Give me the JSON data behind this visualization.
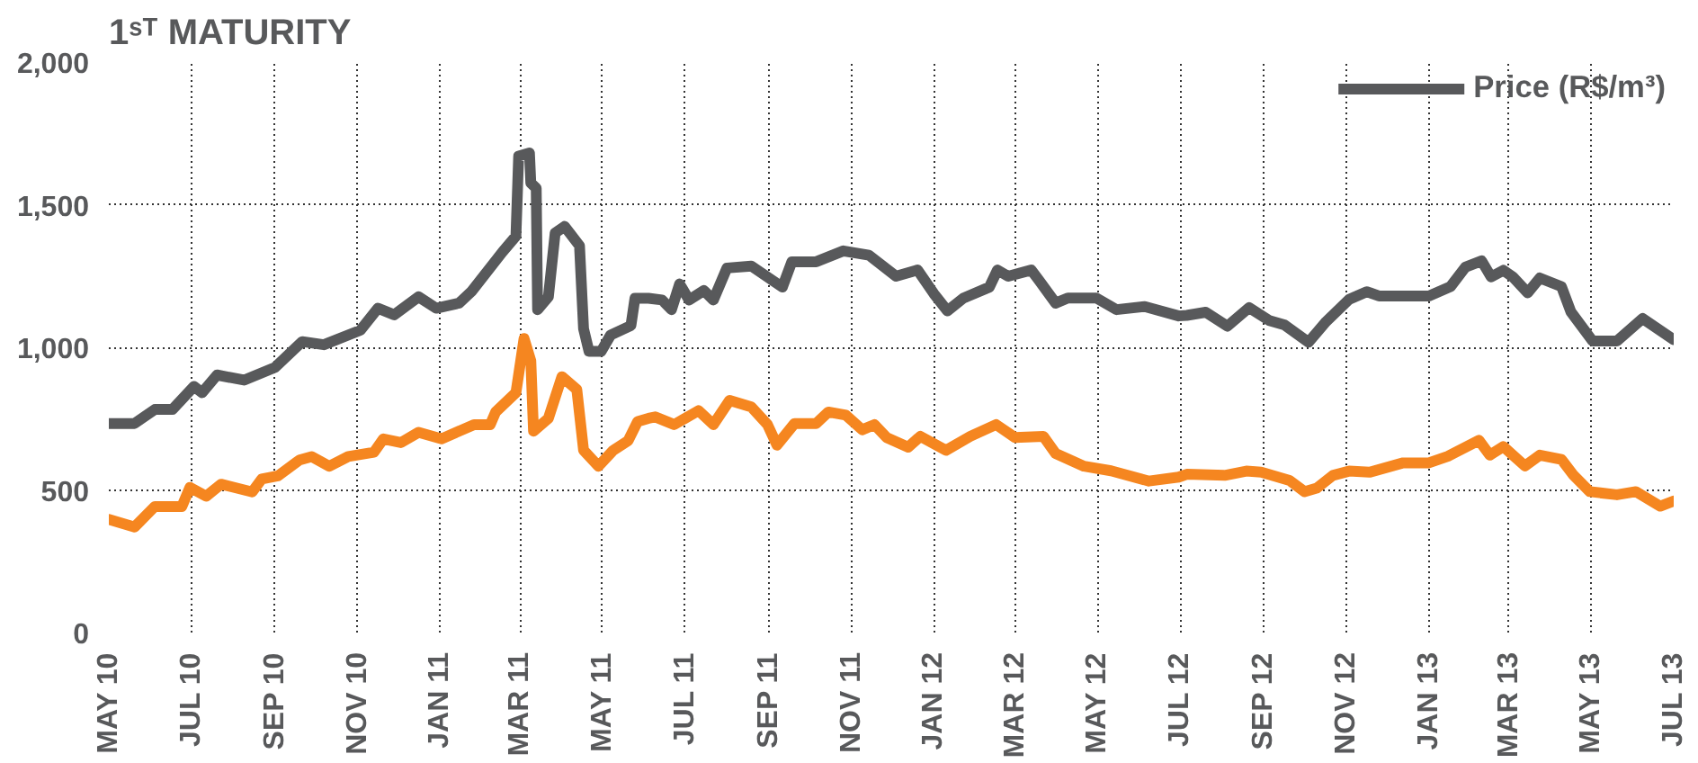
{
  "chart_data": {
    "type": "line",
    "title": "1ˢᵀ MATURITY",
    "xlim": [
      "2010-05-01",
      "2013-07-01"
    ],
    "xticks": [
      {
        "value": "2010-05-01",
        "label": "MAY 10"
      },
      {
        "value": "2010-07-01",
        "label": "JUL 10"
      },
      {
        "value": "2010-09-01",
        "label": "SEP 10"
      },
      {
        "value": "2010-11-01",
        "label": "NOV 10"
      },
      {
        "value": "2011-01-01",
        "label": "JAN 11"
      },
      {
        "value": "2011-03-01",
        "label": "MAR 11"
      },
      {
        "value": "2011-05-01",
        "label": "MAY 11"
      },
      {
        "value": "2011-07-01",
        "label": "JUL 11"
      },
      {
        "value": "2011-09-01",
        "label": "SEP 11"
      },
      {
        "value": "2011-11-01",
        "label": "NOV 11"
      },
      {
        "value": "2012-01-01",
        "label": "JAN 12"
      },
      {
        "value": "2012-03-01",
        "label": "MAR 12"
      },
      {
        "value": "2012-05-01",
        "label": "MAY 12"
      },
      {
        "value": "2012-07-01",
        "label": "JUL 12"
      },
      {
        "value": "2012-09-01",
        "label": "SEP 12"
      },
      {
        "value": "2012-11-01",
        "label": "NOV 12"
      },
      {
        "value": "2013-01-01",
        "label": "JAN 13"
      },
      {
        "value": "2013-03-01",
        "label": "MAR 13"
      },
      {
        "value": "2013-05-01",
        "label": "MAY 13"
      },
      {
        "value": "2013-07-01",
        "label": "JUL 13"
      }
    ],
    "ylim": [
      0,
      2000
    ],
    "yticks": [
      0,
      {
        "value": 500,
        "label": "500"
      },
      {
        "value": 1000,
        "label": "1,000"
      },
      {
        "value": 1500,
        "label": "1,500"
      },
      {
        "value": 2000,
        "label": "2,000"
      }
    ],
    "grid": true,
    "legend": "top right",
    "line_style": "solid",
    "marker": "none",
    "series": [
      {
        "name": "Price (R$/m³)",
        "color": "#58595b",
        "x": [
          "2010-05-01",
          "2010-05-20",
          "2010-06-04",
          "2010-06-17",
          "2010-07-03",
          "2010-07-09",
          "2010-07-20",
          "2010-08-09",
          "2010-09-01",
          "2010-09-21",
          "2010-10-07",
          "2010-11-03",
          "2010-11-16",
          "2010-11-28",
          "2010-12-16",
          "2010-12-29",
          "2011-01-15",
          "2011-01-24",
          "2011-02-16",
          "2011-02-26",
          "2011-02-28",
          "2011-03-08",
          "2011-03-09",
          "2011-03-13",
          "2011-03-14",
          "2011-03-22",
          "2011-03-27",
          "2011-04-03",
          "2011-04-14",
          "2011-04-17",
          "2011-04-21",
          "2011-04-30",
          "2011-05-07",
          "2011-05-22",
          "2011-05-25",
          "2011-06-04",
          "2011-06-14",
          "2011-06-21",
          "2011-06-27",
          "2011-07-04",
          "2011-07-15",
          "2011-07-22",
          "2011-08-01",
          "2011-08-19",
          "2011-09-11",
          "2011-09-18",
          "2011-10-06",
          "2011-10-26",
          "2011-11-14",
          "2011-12-04",
          "2011-12-20",
          "2012-01-01",
          "2012-01-11",
          "2012-01-23",
          "2012-02-11",
          "2012-02-17",
          "2012-02-25",
          "2012-03-13",
          "2012-03-19",
          "2012-03-31",
          "2012-04-09",
          "2012-04-30",
          "2012-05-15",
          "2012-06-05",
          "2012-06-30",
          "2012-07-06",
          "2012-07-20",
          "2012-08-05",
          "2012-08-21",
          "2012-09-05",
          "2012-09-16",
          "2012-10-04",
          "2012-10-17",
          "2012-11-03",
          "2012-11-16",
          "2012-11-25",
          "2013-01-01",
          "2013-01-17",
          "2013-01-28",
          "2013-02-09",
          "2013-02-16",
          "2013-02-25",
          "2013-03-04",
          "2013-03-15",
          "2013-03-24",
          "2013-04-09",
          "2013-04-16",
          "2013-05-02",
          "2013-05-20",
          "2013-06-08",
          "2013-07-01"
        ],
        "values": [
          733,
          733,
          782,
          782,
          863,
          841,
          903,
          885,
          930,
          1020,
          1009,
          1060,
          1137,
          1114,
          1177,
          1137,
          1155,
          1195,
          1334,
          1390,
          1670,
          1681,
          1576,
          1558,
          1132,
          1177,
          1401,
          1424,
          1356,
          1065,
          986,
          986,
          1043,
          1076,
          1172,
          1172,
          1166,
          1132,
          1222,
          1166,
          1199,
          1166,
          1278,
          1285,
          1211,
          1300,
          1300,
          1338,
          1323,
          1249,
          1271,
          1188,
          1128,
          1173,
          1211,
          1271,
          1249,
          1271,
          1233,
          1155,
          1173,
          1173,
          1132,
          1143,
          1110,
          1112,
          1123,
          1074,
          1139,
          1094,
          1079,
          1018,
          1090,
          1168,
          1195,
          1180,
          1180,
          1213,
          1281,
          1303,
          1247,
          1270,
          1247,
          1191,
          1243,
          1213,
          1124,
          1022,
          1022,
          1101,
          1027
        ]
      },
      {
        "color": "#f58620",
        "x": [
          "2010-05-01",
          "2010-05-20",
          "2010-06-04",
          "2010-06-24",
          "2010-06-30",
          "2010-07-12",
          "2010-07-23",
          "2010-08-15",
          "2010-08-22",
          "2010-09-03",
          "2010-09-19",
          "2010-09-28",
          "2010-10-11",
          "2010-10-25",
          "2010-11-13",
          "2010-11-20",
          "2010-12-03",
          "2010-12-16",
          "2011-01-02",
          "2011-01-26",
          "2011-02-07",
          "2011-02-11",
          "2011-02-26",
          "2011-03-04",
          "2011-03-09",
          "2011-03-11",
          "2011-03-22",
          "2011-04-01",
          "2011-04-12",
          "2011-04-17",
          "2011-04-28",
          "2011-05-09",
          "2011-05-20",
          "2011-05-27",
          "2011-06-04",
          "2011-06-09",
          "2011-06-23",
          "2011-07-11",
          "2011-07-22",
          "2011-08-03",
          "2011-08-19",
          "2011-08-31",
          "2011-09-07",
          "2011-09-20",
          "2011-10-06",
          "2011-10-15",
          "2011-10-28",
          "2011-11-09",
          "2011-11-18",
          "2011-11-27",
          "2011-12-13",
          "2011-12-22",
          "2012-01-10",
          "2012-01-28",
          "2012-02-16",
          "2012-03-01",
          "2012-03-22",
          "2012-03-31",
          "2012-04-21",
          "2012-05-11",
          "2012-06-08",
          "2012-06-30",
          "2012-07-06",
          "2012-08-03",
          "2012-08-19",
          "2012-08-30",
          "2012-09-20",
          "2012-10-01",
          "2012-10-10",
          "2012-10-22",
          "2012-11-03",
          "2012-11-18",
          "2012-12-13",
          "2013-01-01",
          "2013-01-15",
          "2013-02-07",
          "2013-02-15",
          "2013-02-25",
          "2013-03-13",
          "2013-03-24",
          "2013-04-09",
          "2013-04-18",
          "2013-04-30",
          "2013-05-20",
          "2013-06-03",
          "2013-06-21",
          "2013-07-01"
        ],
        "values": [
          397,
          370,
          442,
          442,
          509,
          478,
          520,
          493,
          538,
          549,
          605,
          617,
          583,
          617,
          632,
          679,
          666,
          702,
          679,
          729,
          729,
          773,
          841,
          1031,
          953,
          706,
          751,
          897,
          852,
          639,
          583,
          639,
          673,
          740,
          751,
          756,
          729,
          778,
          729,
          814,
          791,
          729,
          657,
          733,
          733,
          773,
          762,
          711,
          729,
          684,
          650,
          688,
          639,
          688,
          729,
          684,
          688,
          628,
          583,
          567,
          531,
          545,
          555,
          551,
          566,
          562,
          533,
          494,
          506,
          551,
          566,
          562,
          595,
          595,
          618,
          674,
          622,
          652,
          584,
          622,
          607,
          551,
          494,
          483,
          494,
          443,
          461
        ]
      }
    ]
  }
}
